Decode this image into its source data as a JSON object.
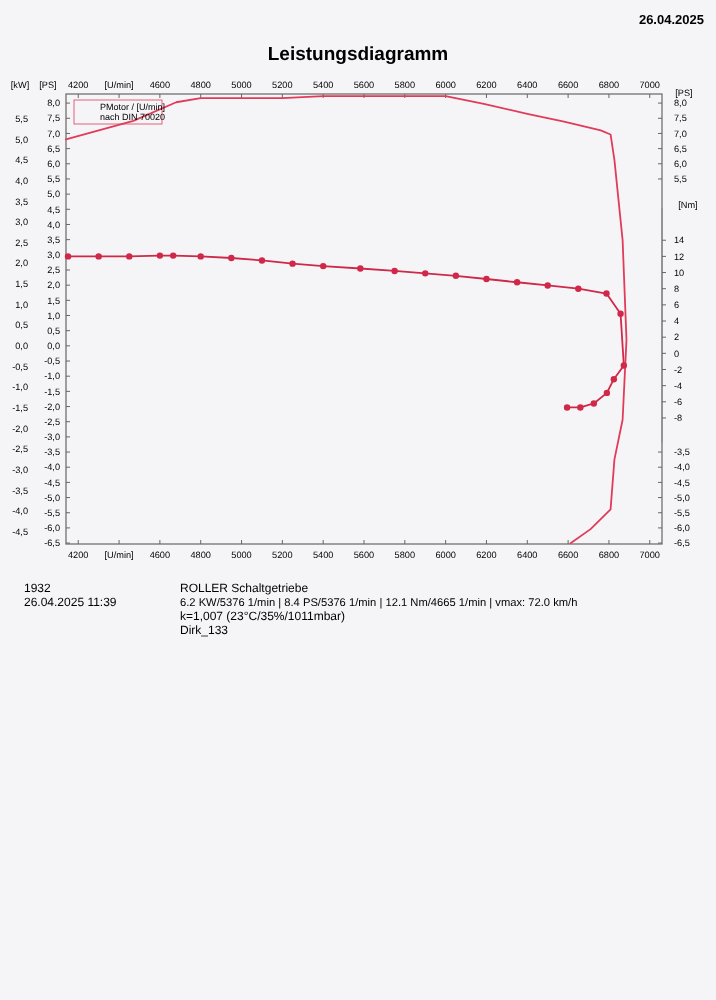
{
  "chart_data": {
    "type": "line",
    "title": "Leistungsdiagramm",
    "annotations": [
      "26.04.2025",
      "PMotor / [U/min]",
      "nach DIN 70020",
      "1932",
      "26.04.2025  11:39",
      "ROLLER Schaltgetriebe",
      "6.2 KW/5376 1/min  |  8.4 PS/5376 1/min  |  12.1 Nm/4665 1/min  |  vmax: 72.0 km/h",
      "k=1,007 (23°C/35%/1011mbar)",
      "Dirk_133"
    ],
    "xlim": [
      4140,
      7060
    ],
    "xticks": [
      4200,
      {
        "value": 4400,
        "label": "[U/min]"
      },
      4600,
      4800,
      5000,
      5200,
      5400,
      5600,
      5800,
      6000,
      6200,
      6400,
      6600,
      6800,
      7000
    ],
    "x2lim": [
      4140,
      7060
    ],
    "x2ticks": [
      4200,
      {
        "value": 4400,
        "label": "[U/min]"
      },
      4600,
      4800,
      5000,
      5200,
      5400,
      5600,
      5800,
      6000,
      6200,
      6400,
      6600,
      6800,
      7000
    ],
    "ylim": [
      -4.8,
      6.1
    ],
    "ylabel": "[kW]",
    "yticks": [
      {
        "value": -4.5,
        "label": "-4,5"
      },
      {
        "value": -4,
        "label": "-4,0"
      },
      {
        "value": -3.5,
        "label": "-3,5"
      },
      {
        "value": -3,
        "label": "-3,0"
      },
      {
        "value": -2.5,
        "label": "-2,5"
      },
      {
        "value": -2,
        "label": "-2,0"
      },
      {
        "value": -1.5,
        "label": "-1,5"
      },
      {
        "value": -1,
        "label": "-1,0"
      },
      {
        "value": -0.5,
        "label": "-0,5"
      },
      {
        "value": 0,
        "label": "0,0"
      },
      {
        "value": 0.5,
        "label": "0,5"
      },
      {
        "value": 1,
        "label": "1,0"
      },
      {
        "value": 1.5,
        "label": "1,5"
      },
      {
        "value": 2,
        "label": "2,0"
      },
      {
        "value": 2.5,
        "label": "2,5"
      },
      {
        "value": 3,
        "label": "3,0"
      },
      {
        "value": 3.5,
        "label": "3,5"
      },
      {
        "value": 4,
        "label": "4,0"
      },
      {
        "value": 4.5,
        "label": "4,5"
      },
      {
        "value": 5,
        "label": "5,0"
      },
      {
        "value": 5.5,
        "label": "5,5"
      }
    ],
    "y2lim": [
      -23.6,
      32.1
    ],
    "y2label": "[Nm]",
    "y2ticks": [
      -8,
      -6,
      -4,
      -2,
      0,
      2,
      4,
      6,
      8,
      10,
      12,
      14
    ],
    "y3lim": [
      -6.53,
      8.3
    ],
    "y3label": "[PS]",
    "y3ticks": [
      {
        "value": -6.5,
        "label": "-6,5"
      },
      {
        "value": -6,
        "label": "-6,0"
      },
      {
        "value": -5.5,
        "label": "-5,5"
      },
      {
        "value": -5,
        "label": "-5,0"
      },
      {
        "value": -4.5,
        "label": "-4,5"
      },
      {
        "value": -4,
        "label": "-4,0"
      },
      {
        "value": -3.5,
        "label": "-3,5"
      },
      {
        "value": -3,
        "label": "-3,0"
      },
      {
        "value": -2.5,
        "label": "-2,5"
      },
      {
        "value": -2,
        "label": "-2,0"
      },
      {
        "value": -1.5,
        "label": "-1,5"
      },
      {
        "value": -1,
        "label": "-1,0"
      },
      {
        "value": -0.5,
        "label": "-0,5"
      },
      {
        "value": 0,
        "label": "0,0"
      },
      {
        "value": 0.5,
        "label": "0,5"
      },
      {
        "value": 1,
        "label": "1,0"
      },
      {
        "value": 1.5,
        "label": "1,5"
      },
      {
        "value": 2,
        "label": "2,0"
      },
      {
        "value": 2.5,
        "label": "2,5"
      },
      {
        "value": 3,
        "label": "3,0"
      },
      {
        "value": 3.5,
        "label": "3,5"
      },
      {
        "value": 4,
        "label": "4,0"
      },
      {
        "value": 4.5,
        "label": "4,5"
      },
      {
        "value": 5,
        "label": "5,0"
      },
      {
        "value": 5.5,
        "label": "5,5"
      },
      {
        "value": 6,
        "label": "6,0"
      },
      {
        "value": 6.5,
        "label": "6,5"
      },
      {
        "value": 7,
        "label": "7,0"
      },
      {
        "value": 7.5,
        "label": "7,5"
      },
      {
        "value": 8,
        "label": "8,0"
      }
    ],
    "series": [
      {
        "color": "#e03c5a",
        "marker": "none",
        "x": [
          4140,
          4470,
          4680,
          4800,
          5000,
          5200,
          5400,
          5600,
          5800,
          6000,
          6187,
          6400,
          6580,
          6760,
          6808,
          6827,
          6867,
          6886,
          6867,
          6827,
          6808,
          6710,
          6612
        ],
        "values": [
          5.0,
          5.45,
          5.9,
          6.0,
          6.0,
          6.0,
          6.05,
          6.05,
          6.05,
          6.05,
          5.86,
          5.62,
          5.43,
          5.22,
          5.12,
          4.5,
          2.56,
          0.15,
          -1.79,
          -2.75,
          -3.96,
          -4.44,
          -4.78
        ]
      },
      {
        "axis": "y2",
        "color": "#d02848",
        "marker": "circle",
        "x": [
          4150,
          4300,
          4450,
          4600,
          4665,
          4800,
          4950,
          5100,
          5250,
          5400,
          5582,
          5750,
          5900,
          6050,
          6200,
          6350,
          6500,
          6650,
          6788,
          6857,
          6873,
          6824,
          6790,
          6726,
          6660,
          6595
        ],
        "values": [
          12.0,
          12.0,
          12.0,
          12.1,
          12.1,
          12.0,
          11.8,
          11.5,
          11.1,
          10.8,
          10.5,
          10.2,
          9.9,
          9.6,
          9.2,
          8.8,
          8.4,
          8.0,
          7.4,
          4.9,
          -1.5,
          -3.2,
          -4.9,
          -6.2,
          -6.7,
          -6.7
        ]
      }
    ]
  }
}
